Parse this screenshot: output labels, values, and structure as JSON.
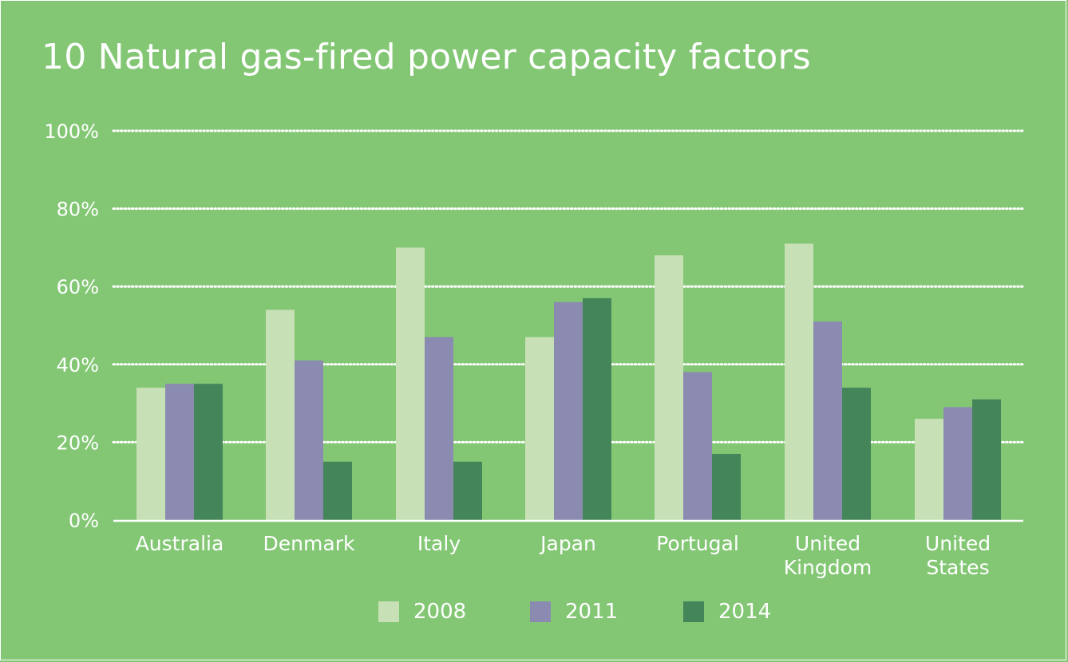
{
  "chart_data": {
    "type": "bar",
    "title": "10 Natural gas-fired power capacity factors",
    "categories": [
      [
        "Australia"
      ],
      [
        "Denmark"
      ],
      [
        "Italy"
      ],
      [
        "Japan"
      ],
      [
        "Portugal"
      ],
      [
        "United",
        "Kingdom"
      ],
      [
        "United",
        "States"
      ]
    ],
    "series": [
      {
        "name": "2008",
        "color": "#c8e0b6",
        "values": [
          34,
          54,
          70,
          47,
          68,
          71,
          26
        ]
      },
      {
        "name": "2011",
        "color": "#8b8ab1",
        "values": [
          35,
          41,
          47,
          56,
          38,
          51,
          29
        ]
      },
      {
        "name": "2014",
        "color": "#44855a",
        "values": [
          35,
          15,
          15,
          57,
          17,
          34,
          31
        ]
      }
    ],
    "ylim": [
      0,
      100
    ],
    "yticks": [
      "0%",
      "20%",
      "40%",
      "60%",
      "80%",
      "100%"
    ],
    "ytick_values": [
      0,
      20,
      40,
      60,
      80,
      100
    ],
    "grid": true,
    "legend_position": "bottom"
  }
}
